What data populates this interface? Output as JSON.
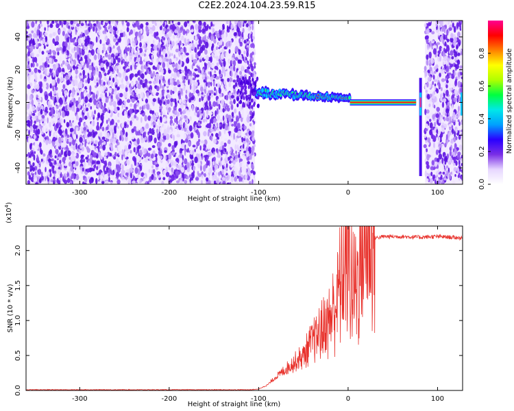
{
  "figure_title": "C2E2.2024.104.23.59.R15",
  "chart_data": [
    {
      "type": "heatmap",
      "panel": "spectrogram",
      "xlabel": "Height of straight line (km)",
      "ylabel": "Frequency (Hz)",
      "xlim": [
        -360,
        128
      ],
      "ylim": [
        -50,
        50
      ],
      "xticks": [
        -300,
        -200,
        -100,
        0,
        100
      ],
      "yticks": [
        -40,
        -20,
        0,
        20,
        40
      ],
      "colorbar": {
        "label": "Normalized spectral amplitude",
        "range": [
          0.0,
          1.0
        ],
        "ticks": [
          "0.0",
          "0.2",
          "0.4",
          "0.6",
          "0.8"
        ],
        "colormap": [
          "#ffffff",
          "#e6d6ff",
          "#7a2fe6",
          "#2a00ff",
          "#00a0ff",
          "#00e8e8",
          "#00ff40",
          "#b0ff00",
          "#ffff00",
          "#ff8000",
          "#ff0000",
          "#ff0090"
        ]
      },
      "features": [
        {
          "name": "noise region",
          "x_range": [
            -360,
            -104
          ],
          "y_range": [
            -50,
            50
          ],
          "amplitude": 0.1
        },
        {
          "name": "signal band",
          "x_range": [
            -104,
            80
          ],
          "y_center_at_start": 6,
          "y_center_at_end": 0,
          "peak_amplitude": 1.0
        },
        {
          "name": "vertical spike",
          "x": 81,
          "y_range": [
            -45,
            15
          ],
          "amplitude": 0.3
        },
        {
          "name": "noise region",
          "x_range": [
            86,
            128
          ],
          "y_range": [
            -50,
            50
          ],
          "amplitude": 0.1
        }
      ]
    },
    {
      "type": "line",
      "panel": "snr",
      "xlabel": "Height of straight line (km)",
      "ylabel": "SNR (10 * v/v)",
      "scale_label_base": "(x10",
      "scale_label_exp": "4",
      "scale_label_close": ")",
      "xlim": [
        -360,
        128
      ],
      "ylim": [
        0,
        2.35
      ],
      "xticks": [
        -300,
        -200,
        -100,
        0,
        100
      ],
      "yticks": [
        "0.0",
        "0.5",
        "1.0",
        "1.5",
        "2.0"
      ],
      "color": "#e8302a",
      "series": [
        {
          "x": [
            -360,
            -110,
            -100,
            -90,
            -80,
            -70,
            -60,
            -50,
            -40,
            -30,
            -20,
            -15,
            -10,
            -5,
            0,
            5,
            10,
            15,
            20,
            25,
            30,
            40,
            60,
            80,
            100,
            128
          ],
          "y": [
            0.01,
            0.01,
            0.02,
            0.08,
            0.2,
            0.3,
            0.4,
            0.5,
            0.7,
            0.85,
            1.0,
            1.2,
            1.45,
            1.7,
            1.9,
            1.5,
            1.55,
            1.95,
            2.1,
            2.15,
            2.18,
            2.2,
            2.2,
            2.19,
            2.2,
            2.18
          ]
        }
      ]
    }
  ]
}
